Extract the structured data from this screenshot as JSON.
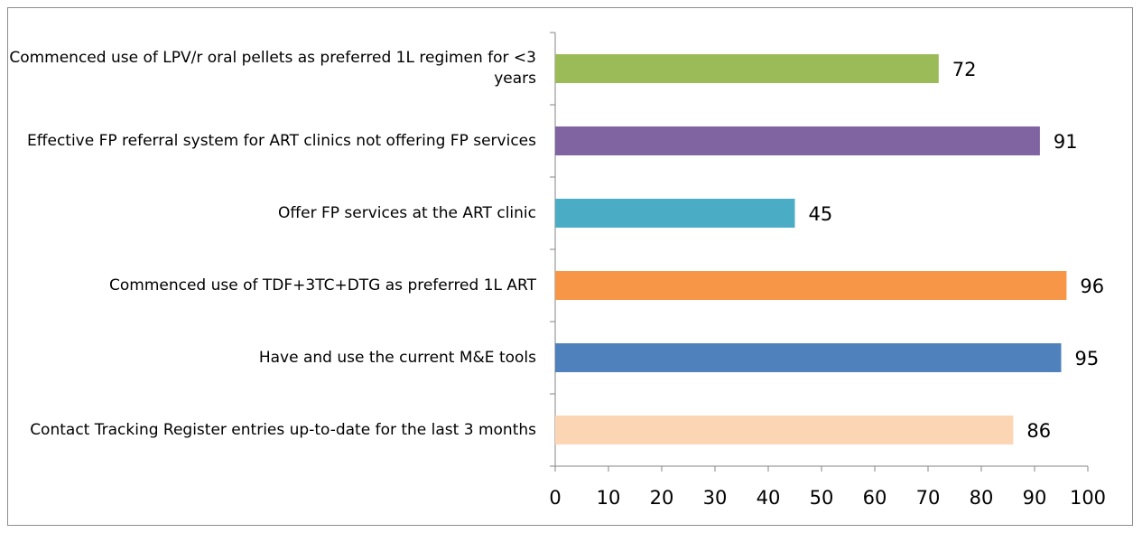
{
  "chart_data": {
    "type": "bar",
    "orientation": "horizontal",
    "categories": [
      "Commenced use of LPV/r oral pellets as preferred 1L regimen for <3 years",
      "Effective FP referral system for ART clinics not offering FP services",
      "Offer FP services at the ART clinic",
      "Commenced use of TDF+3TC+DTG as preferred 1L ART",
      "Have and use the current M&E tools",
      "Contact Tracking Register entries up-to-date for the last 3 months"
    ],
    "values": [
      72,
      91,
      45,
      96,
      95,
      86
    ],
    "value_labels": [
      "72",
      "91",
      "45",
      "96",
      "95",
      "86"
    ],
    "colors": [
      "#9bbb59",
      "#8064a2",
      "#4bacc6",
      "#f79646",
      "#4f81bd",
      "#fcd5b5"
    ],
    "xlim": [
      0,
      100
    ],
    "xticks": [
      0,
      10,
      20,
      30,
      40,
      50,
      60,
      70,
      80,
      90,
      100
    ],
    "xtick_labels": [
      "0",
      "10",
      "20",
      "30",
      "40",
      "50",
      "60",
      "70",
      "80",
      "90",
      "100"
    ],
    "title": "",
    "xlabel": "",
    "ylabel": "",
    "grid": false,
    "legend": "none"
  }
}
